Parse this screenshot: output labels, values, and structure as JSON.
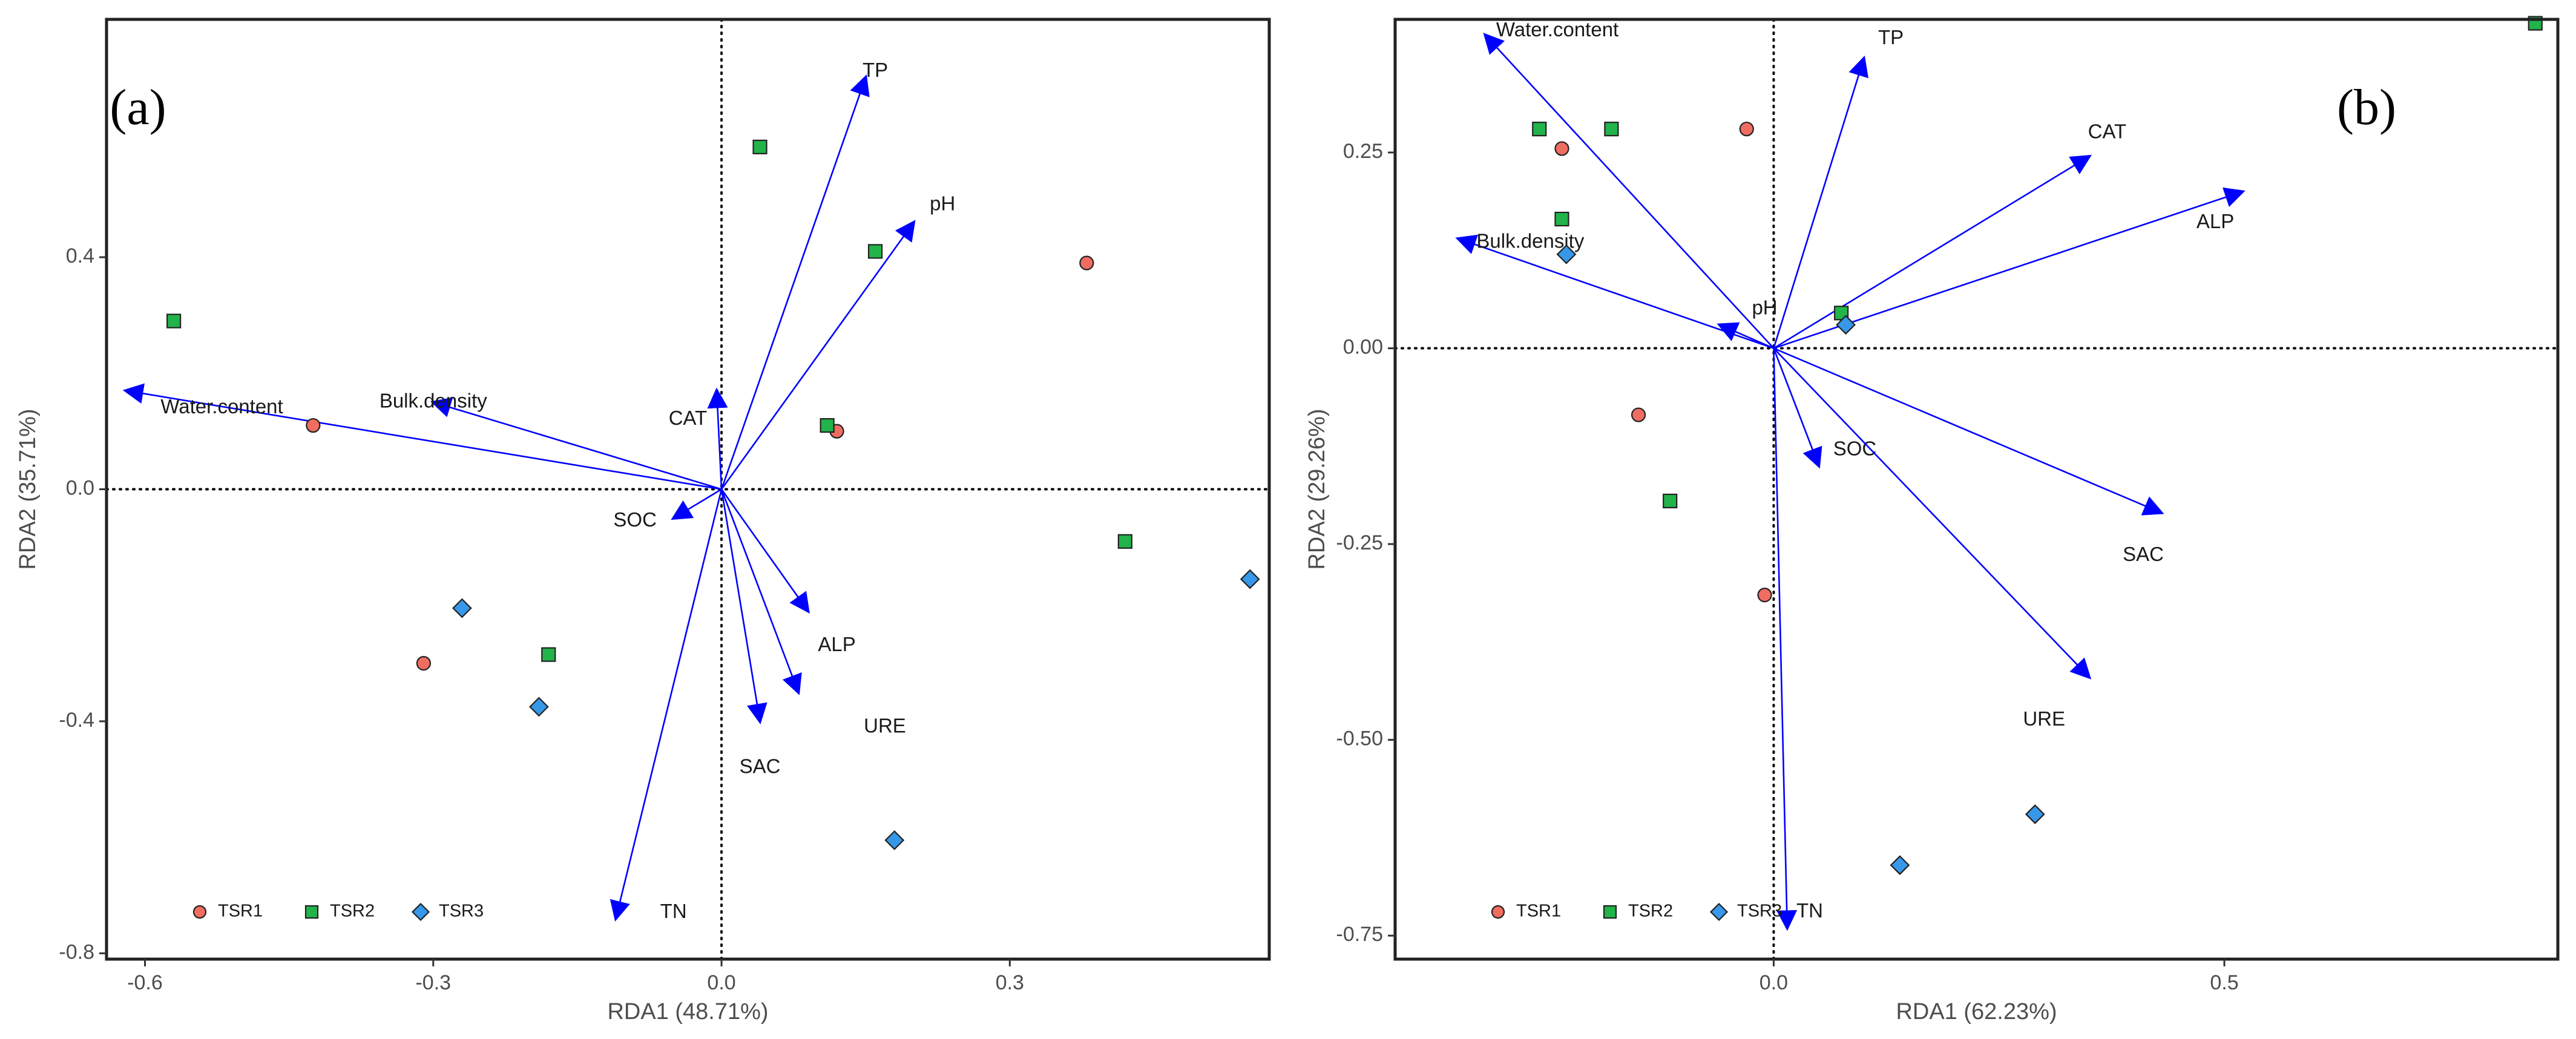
{
  "chart_data": [
    {
      "type": "scatter",
      "subtype": "rda_biplot",
      "panel_label": "(a)",
      "xlabel": "RDA1 (48.71%)",
      "ylabel": "RDA2 (35.71%)",
      "xlim": [
        -0.64,
        0.57
      ],
      "ylim": [
        -0.81,
        0.81
      ],
      "xticks": [
        -0.6,
        -0.3,
        0.0,
        0.3
      ],
      "xtick_labels": [
        "-0.6",
        "-0.3",
        "0.0",
        "0.3"
      ],
      "yticks": [
        -0.8,
        -0.4,
        0.0,
        0.4
      ],
      "ytick_labels": [
        "-0.8",
        "-0.4",
        "0.0",
        "0.4"
      ],
      "arrows": [
        {
          "name": "TP",
          "x": 0.15,
          "y": 0.71
        },
        {
          "name": "pH",
          "x": 0.2,
          "y": 0.46
        },
        {
          "name": "Water.content",
          "x": -0.62,
          "y": 0.17
        },
        {
          "name": "Bulk.density",
          "x": -0.3,
          "y": 0.15
        },
        {
          "name": "CAT",
          "x": -0.005,
          "y": 0.17
        },
        {
          "name": "SOC",
          "x": -0.05,
          "y": -0.05
        },
        {
          "name": "ALP",
          "x": 0.09,
          "y": -0.21
        },
        {
          "name": "URE",
          "x": 0.08,
          "y": -0.35
        },
        {
          "name": "SAC",
          "x": 0.04,
          "y": -0.4
        },
        {
          "name": "TN",
          "x": -0.11,
          "y": -0.74
        }
      ],
      "arrow_label_offsets": {
        "TP": [
          0.01,
          0.01
        ],
        "pH": [
          0.03,
          0.03
        ],
        "Water.content": [
          0.1,
          -0.03
        ],
        "Bulk.density": [
          0.0,
          0.0
        ],
        "CAT": [
          -0.03,
          -0.05
        ],
        "SOC": [
          -0.04,
          -0.005
        ],
        "ALP": [
          0.03,
          -0.06
        ],
        "URE": [
          0.09,
          -0.06
        ],
        "SAC": [
          0.0,
          -0.08
        ],
        "TN": [
          0.06,
          0.01
        ]
      },
      "series": [
        {
          "name": "TSR1",
          "marker": "circle",
          "color": "#f06d61",
          "points": [
            [
              -0.425,
              0.11
            ],
            [
              -0.31,
              -0.3
            ],
            [
              0.38,
              0.39
            ],
            [
              0.12,
              0.1
            ]
          ]
        },
        {
          "name": "TSR2",
          "marker": "square",
          "color": "#22b34a",
          "points": [
            [
              -0.57,
              0.29
            ],
            [
              0.04,
              0.59
            ],
            [
              0.16,
              0.41
            ],
            [
              0.11,
              0.11
            ],
            [
              0.42,
              -0.09
            ],
            [
              -0.18,
              -0.285
            ]
          ]
        },
        {
          "name": "TSR3",
          "marker": "diamond",
          "color": "#3797e8",
          "points": [
            [
              -0.27,
              -0.205
            ],
            [
              -0.19,
              -0.375
            ],
            [
              0.55,
              -0.155
            ],
            [
              0.18,
              -0.605
            ]
          ]
        }
      ],
      "legend": {
        "position": "bottom-left",
        "entries": [
          "TSR1",
          "TSR2",
          "TSR3"
        ]
      },
      "reference_lines": {
        "x": 0,
        "y": 0,
        "style": "dotted"
      },
      "grid": false
    },
    {
      "type": "scatter",
      "subtype": "rda_biplot",
      "panel_label": "(b)",
      "xlabel": "RDA1 (62.23%)",
      "ylabel": "RDA2 (29.26%)",
      "xlim": [
        -0.42,
        0.87
      ],
      "ylim": [
        -0.78,
        0.42
      ],
      "xticks": [
        0.0,
        0.5
      ],
      "xtick_labels": [
        "0.0",
        "0.5"
      ],
      "yticks": [
        -0.75,
        -0.5,
        -0.25,
        0.0,
        0.25
      ],
      "ytick_labels": [
        "-0.75",
        "-0.50",
        "-0.25",
        "0.00",
        "0.25"
      ],
      "arrows": [
        {
          "name": "Water.content",
          "x": -0.32,
          "y": 0.4
        },
        {
          "name": "TP",
          "x": 0.1,
          "y": 0.37
        },
        {
          "name": "CAT",
          "x": 0.35,
          "y": 0.245
        },
        {
          "name": "ALP",
          "x": 0.52,
          "y": 0.2
        },
        {
          "name": "Bulk.density",
          "x": -0.35,
          "y": 0.14
        },
        {
          "name": "pH",
          "x": -0.06,
          "y": 0.03
        },
        {
          "name": "SOC",
          "x": 0.05,
          "y": -0.15
        },
        {
          "name": "SAC",
          "x": 0.43,
          "y": -0.21
        },
        {
          "name": "URE",
          "x": 0.35,
          "y": -0.42
        },
        {
          "name": "TN",
          "x": 0.015,
          "y": -0.74
        }
      ],
      "arrow_label_offsets": {
        "Water.content": [
          0.08,
          0.005
        ],
        "TP": [
          0.03,
          0.025
        ],
        "CAT": [
          0.02,
          0.03
        ],
        "ALP": [
          -0.03,
          -0.04
        ],
        "Bulk.density": [
          0.08,
          -0.005
        ],
        "pH": [
          0.05,
          0.02
        ],
        "SOC": [
          0.04,
          0.02
        ],
        "SAC": [
          -0.02,
          -0.055
        ],
        "URE": [
          -0.05,
          -0.055
        ],
        "TN": [
          0.025,
          0.02
        ]
      },
      "series": [
        {
          "name": "TSR1",
          "marker": "circle",
          "color": "#f06d61",
          "points": [
            [
              -0.235,
              0.255
            ],
            [
              -0.03,
              0.28
            ],
            [
              -0.15,
              -0.085
            ],
            [
              -0.01,
              -0.315
            ]
          ]
        },
        {
          "name": "TSR2",
          "marker": "square",
          "color": "#22b34a",
          "points": [
            [
              -0.26,
              0.28
            ],
            [
              -0.18,
              0.28
            ],
            [
              -0.235,
              0.165
            ],
            [
              0.075,
              0.045
            ],
            [
              -0.115,
              -0.195
            ],
            [
              0.845,
              0.415
            ]
          ]
        },
        {
          "name": "TSR3",
          "marker": "diamond",
          "color": "#3797e8",
          "points": [
            [
              -0.23,
              0.12
            ],
            [
              0.08,
              0.03
            ],
            [
              0.29,
              -0.595
            ],
            [
              0.14,
              -0.66
            ]
          ]
        }
      ],
      "legend": {
        "position": "bottom-left",
        "entries": [
          "TSR1",
          "TSR2",
          "TSR3"
        ]
      },
      "reference_lines": {
        "x": 0,
        "y": 0,
        "style": "dotted"
      },
      "grid": false
    }
  ]
}
